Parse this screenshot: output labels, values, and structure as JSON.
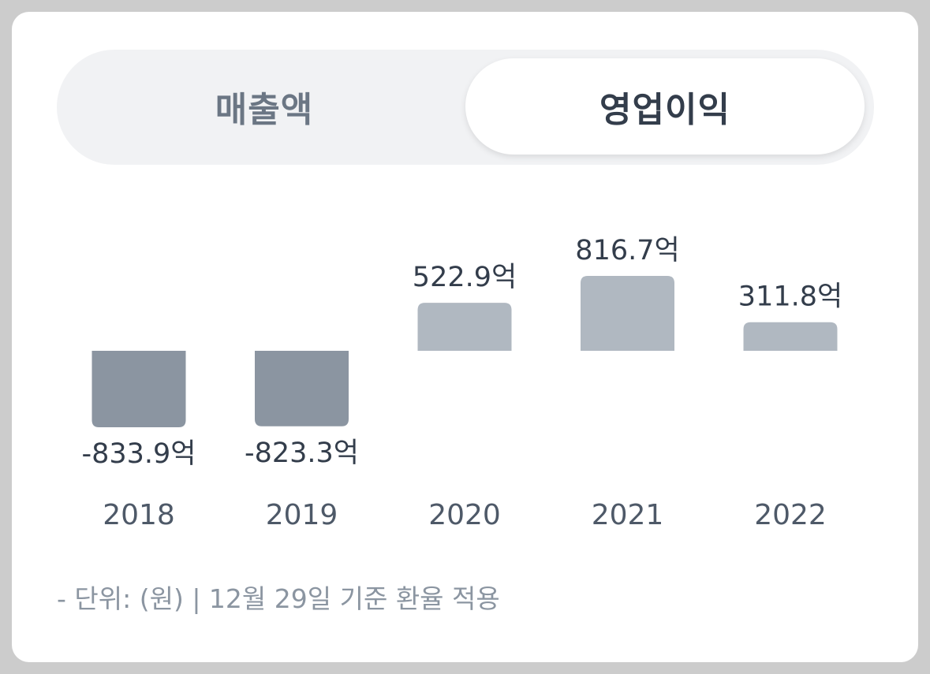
{
  "tabs": {
    "revenue_label": "매출액",
    "operating_profit_label": "영업이익",
    "selected": "operating_profit"
  },
  "colors": {
    "negative_bar": "#8b95a1",
    "positive_bar": "#b0b8c1",
    "card_bg": "#ffffff",
    "segment_bg": "#f1f2f4"
  },
  "chart_data": {
    "type": "bar",
    "categories": [
      "2018",
      "2019",
      "2020",
      "2021",
      "2022"
    ],
    "values": [
      -833.9,
      -823.3,
      522.9,
      816.7,
      311.8
    ],
    "labels": [
      "-833.9억",
      "-823.3억",
      "522.9억",
      "816.7억",
      "311.8억"
    ],
    "title": "",
    "xlabel": "",
    "ylabel": ""
  },
  "footnote": "- 단위: (원) | 12월 29일 기준 환율 적용"
}
